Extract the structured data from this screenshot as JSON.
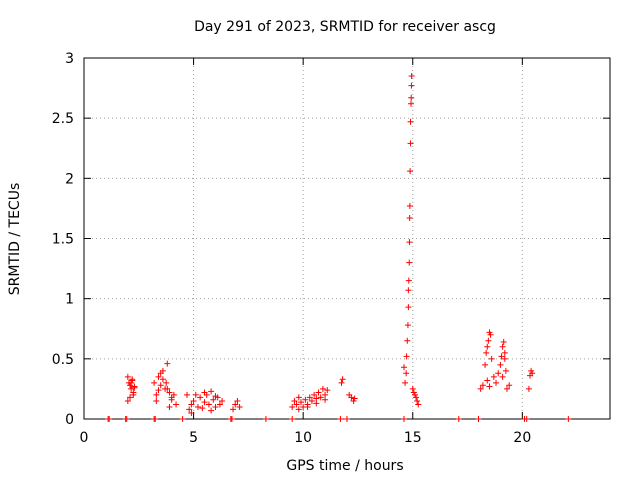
{
  "chart_data": {
    "type": "scatter",
    "title": "Day 291 of 2023, SRMTID for receiver ascg",
    "xlabel": "GPS time / hours",
    "ylabel": "SRMTID / TECUs",
    "xlim": [
      0,
      24
    ],
    "ylim": [
      0,
      3
    ],
    "x_ticks": [
      0,
      5,
      10,
      15,
      20
    ],
    "x_tick_labels": [
      "0",
      "5",
      "10",
      "15",
      "20"
    ],
    "y_ticks": [
      0,
      0.5,
      1,
      1.5,
      2,
      2.5,
      3
    ],
    "y_tick_labels": [
      "0",
      "0.5",
      "1",
      "1.5",
      "2",
      "2.5",
      "3"
    ],
    "grid": true,
    "marker": "+",
    "series": [
      {
        "name": "SRMTID",
        "color": "#ff0000",
        "x": [
          1.1,
          1.15,
          1.9,
          1.95,
          3.2,
          3.25,
          4.5,
          6.7,
          6.75,
          8.3,
          9.5,
          11.7,
          12.0,
          14.6,
          17.1,
          18.0,
          20.1,
          20.2,
          22.1,
          2.0,
          2.05,
          2.1,
          2.15,
          2.2,
          2.25,
          2.3,
          2.0,
          2.1,
          2.2,
          2.25,
          2.15,
          2.3,
          3.2,
          3.3,
          3.4,
          3.5,
          3.6,
          3.7,
          3.8,
          3.9,
          4.0,
          4.1,
          4.2,
          3.3,
          3.5,
          3.75,
          3.8,
          3.9,
          4.0,
          3.6,
          3.4,
          4.7,
          4.8,
          4.9,
          5.0,
          5.1,
          5.2,
          5.3,
          5.4,
          5.5,
          5.6,
          5.7,
          5.8,
          5.9,
          6.0,
          6.1,
          6.2,
          6.3,
          4.9,
          5.5,
          5.8,
          6.0,
          6.8,
          6.9,
          7.0,
          7.1,
          9.5,
          9.6,
          9.7,
          9.8,
          9.9,
          10.0,
          10.1,
          10.2,
          10.3,
          10.4,
          10.5,
          10.6,
          10.7,
          10.8,
          10.9,
          11.0,
          11.1,
          9.8,
          10.2,
          10.6,
          11.0,
          11.75,
          11.8,
          12.1,
          12.2,
          12.3,
          12.35,
          14.6,
          14.65,
          14.7,
          14.72,
          14.75,
          14.78,
          14.8,
          14.8,
          14.82,
          14.84,
          14.85,
          14.86,
          14.87,
          14.88,
          14.9,
          14.9,
          14.92,
          14.93,
          14.94,
          14.95,
          15.0,
          15.05,
          15.1,
          15.15,
          15.2,
          15.25,
          18.1,
          18.2,
          18.3,
          18.35,
          18.4,
          18.45,
          18.5,
          18.55,
          18.6,
          18.7,
          18.8,
          18.9,
          19.0,
          19.05,
          19.1,
          19.15,
          19.2,
          19.25,
          19.3,
          19.4,
          18.4,
          18.5,
          19.1,
          19.2,
          20.3,
          20.35,
          20.4,
          20.45
        ],
        "y": [
          0.0,
          0.0,
          0.0,
          0.0,
          0.0,
          0.0,
          0.0,
          0.0,
          0.0,
          0.0,
          0.0,
          0.0,
          0.0,
          0.0,
          0.0,
          0.0,
          0.0,
          0.0,
          0.0,
          0.35,
          0.3,
          0.28,
          0.25,
          0.32,
          0.2,
          0.27,
          0.15,
          0.18,
          0.33,
          0.22,
          0.3,
          0.26,
          0.3,
          0.2,
          0.35,
          0.28,
          0.4,
          0.25,
          0.46,
          0.22,
          0.18,
          0.2,
          0.12,
          0.15,
          0.38,
          0.3,
          0.25,
          0.1,
          0.16,
          0.33,
          0.24,
          0.2,
          0.08,
          0.12,
          0.15,
          0.2,
          0.1,
          0.18,
          0.09,
          0.14,
          0.2,
          0.12,
          0.23,
          0.16,
          0.1,
          0.18,
          0.12,
          0.15,
          0.05,
          0.22,
          0.07,
          0.19,
          0.08,
          0.12,
          0.15,
          0.1,
          0.1,
          0.15,
          0.12,
          0.18,
          0.14,
          0.1,
          0.16,
          0.12,
          0.18,
          0.15,
          0.2,
          0.17,
          0.22,
          0.18,
          0.25,
          0.2,
          0.24,
          0.08,
          0.1,
          0.13,
          0.16,
          0.3,
          0.33,
          0.2,
          0.18,
          0.15,
          0.17,
          0.43,
          0.3,
          0.38,
          0.52,
          0.65,
          0.78,
          0.93,
          1.07,
          1.15,
          1.3,
          1.47,
          1.67,
          1.77,
          2.06,
          2.29,
          2.47,
          2.62,
          2.67,
          2.77,
          2.85,
          0.25,
          0.22,
          0.2,
          0.18,
          0.15,
          0.12,
          0.25,
          0.28,
          0.45,
          0.55,
          0.6,
          0.65,
          0.72,
          0.7,
          0.5,
          0.35,
          0.3,
          0.38,
          0.45,
          0.52,
          0.6,
          0.64,
          0.55,
          0.4,
          0.25,
          0.28,
          0.32,
          0.27,
          0.35,
          0.5,
          0.25,
          0.36,
          0.4,
          0.38
        ]
      }
    ]
  }
}
